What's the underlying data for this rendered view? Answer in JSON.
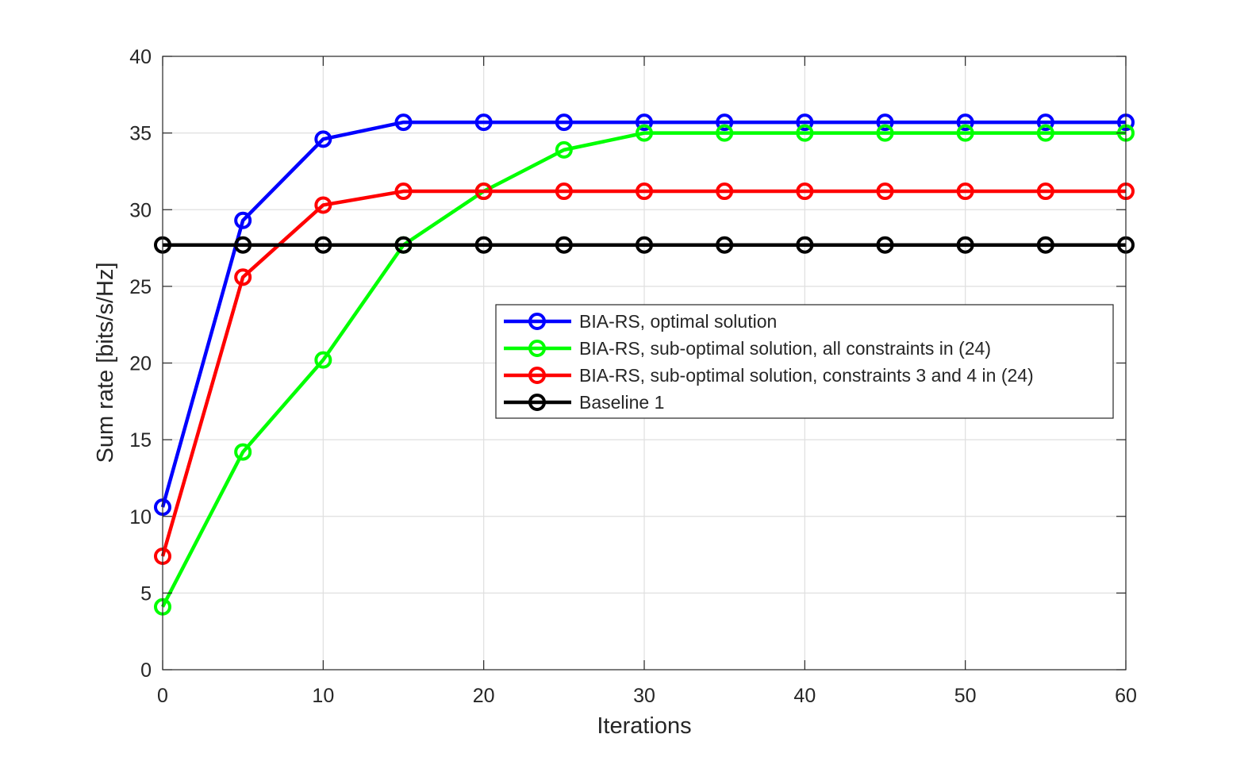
{
  "chart_data": {
    "type": "line",
    "xlabel": "Iterations",
    "ylabel": "Sum rate [bits/s/Hz]",
    "xlim": [
      0,
      60
    ],
    "ylim": [
      0,
      40
    ],
    "xticks": [
      0,
      10,
      20,
      30,
      40,
      50,
      60
    ],
    "yticks": [
      0,
      5,
      10,
      15,
      20,
      25,
      30,
      35,
      40
    ],
    "grid": true,
    "legend_position": "center-right",
    "x": [
      0,
      5,
      10,
      15,
      20,
      25,
      30,
      35,
      40,
      45,
      50,
      55,
      60
    ],
    "series": [
      {
        "name": "BIA-RS, optimal solution",
        "color": "#0000ff",
        "values": [
          10.6,
          29.3,
          34.6,
          35.7,
          35.7,
          35.7,
          35.7,
          35.7,
          35.7,
          35.7,
          35.7,
          35.7,
          35.7
        ]
      },
      {
        "name": "BIA-RS, sub-optimal solution, all constraints in (24)",
        "color": "#00ff00",
        "values": [
          4.1,
          14.2,
          20.2,
          27.7,
          31.2,
          33.9,
          35.0,
          35.0,
          35.0,
          35.0,
          35.0,
          35.0,
          35.0
        ]
      },
      {
        "name": "BIA-RS, sub-optimal solution, constraints 3 and 4 in (24)",
        "color": "#ff0000",
        "values": [
          7.4,
          25.6,
          30.3,
          31.2,
          31.2,
          31.2,
          31.2,
          31.2,
          31.2,
          31.2,
          31.2,
          31.2,
          31.2
        ]
      },
      {
        "name": "Baseline 1",
        "color": "#000000",
        "values": [
          27.7,
          27.7,
          27.7,
          27.7,
          27.7,
          27.7,
          27.7,
          27.7,
          27.7,
          27.7,
          27.7,
          27.7,
          27.7
        ]
      }
    ]
  }
}
